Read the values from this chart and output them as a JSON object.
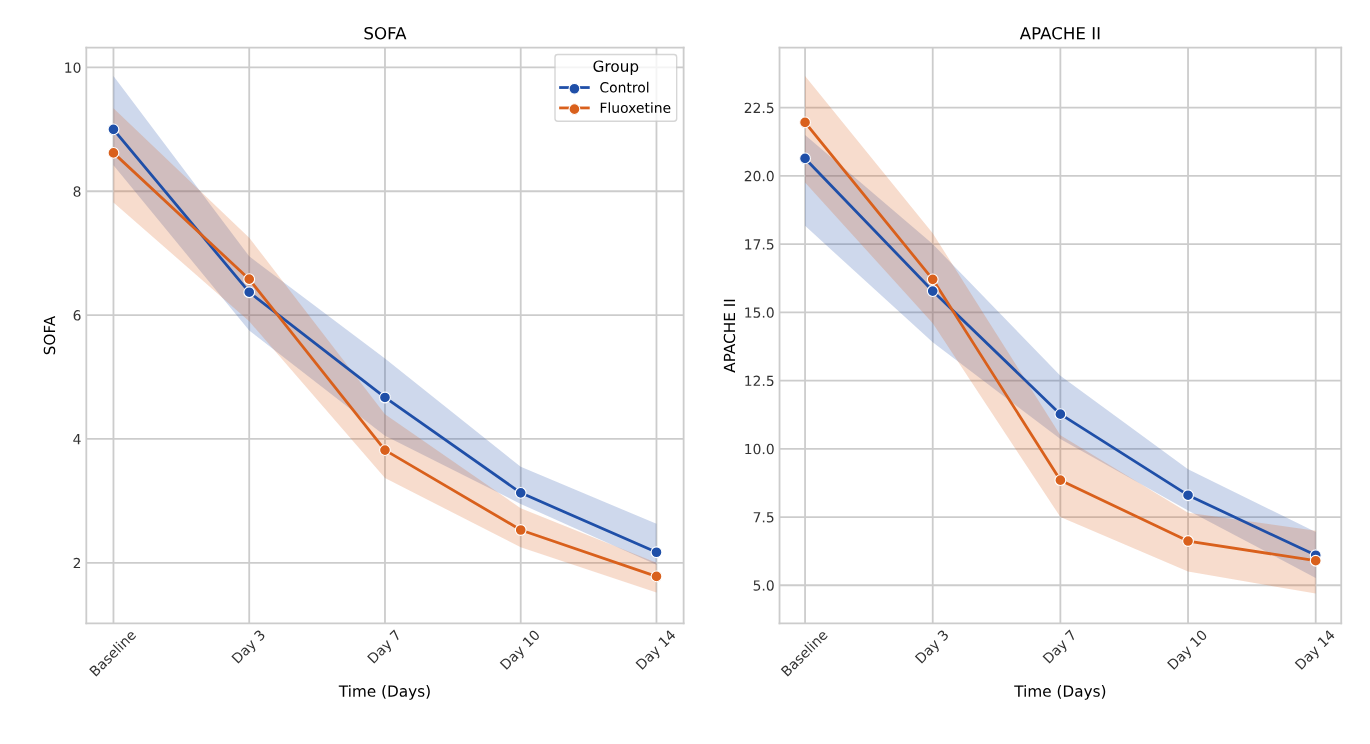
{
  "chart_data": [
    {
      "type": "line",
      "title": "SOFA",
      "xlabel": "Time (Days)",
      "ylabel": "SOFA",
      "legend_title": "Group",
      "legend": "top right",
      "grid": true,
      "marker": "circle",
      "line_style": "solid",
      "categories": [
        "Baseline",
        "Day 3",
        "Day 7",
        "Day 10",
        "Day 14"
      ],
      "ylim": [
        1.02,
        10.32
      ],
      "yticks": [
        2,
        4,
        6,
        8,
        10
      ],
      "series": [
        {
          "name": "Control",
          "color": "#1f4fa8",
          "values": [
            9.0,
            6.37,
            4.67,
            3.13,
            2.17
          ],
          "lower": [
            8.42,
            5.75,
            4.05,
            2.95,
            1.97
          ],
          "upper": [
            9.86,
            6.95,
            5.3,
            3.55,
            2.63
          ]
        },
        {
          "name": "Fluoxetine",
          "color": "#d9601c",
          "values": [
            8.62,
            6.58,
            3.82,
            2.53,
            1.78
          ],
          "lower": [
            7.82,
            5.9,
            3.37,
            2.25,
            1.52
          ],
          "upper": [
            9.34,
            7.25,
            4.4,
            2.88,
            2.0
          ]
        }
      ]
    },
    {
      "type": "line",
      "title": "APACHE II",
      "xlabel": "Time (Days)",
      "ylabel": "APACHE II",
      "grid": true,
      "marker": "circle",
      "line_style": "solid",
      "categories": [
        "Baseline",
        "Day 3",
        "Day 7",
        "Day 10",
        "Day 14"
      ],
      "ylim": [
        3.6,
        24.7
      ],
      "yticks": [
        {
          "value": 5,
          "label": "5.0"
        },
        {
          "value": 7.5,
          "label": "7.5"
        },
        {
          "value": 10,
          "label": "10.0"
        },
        {
          "value": 12.5,
          "label": "12.5"
        },
        {
          "value": 15,
          "label": "15.0"
        },
        {
          "value": 17.5,
          "label": "17.5"
        },
        {
          "value": 20,
          "label": "20.0"
        },
        {
          "value": 22.5,
          "label": "22.5"
        }
      ],
      "series": [
        {
          "color": "#1f4fa8",
          "values": [
            20.64,
            15.78,
            11.27,
            8.3,
            6.1
          ],
          "lower": [
            18.17,
            13.9,
            10.36,
            7.74,
            5.27
          ],
          "upper": [
            21.5,
            17.5,
            12.68,
            9.25,
            6.95
          ]
        },
        {
          "color": "#d9601c",
          "values": [
            21.96,
            16.21,
            8.85,
            6.62,
            5.9
          ],
          "lower": [
            19.76,
            14.6,
            7.5,
            5.5,
            4.7
          ],
          "upper": [
            23.66,
            17.9,
            10.5,
            7.66,
            7.0
          ]
        }
      ]
    }
  ]
}
